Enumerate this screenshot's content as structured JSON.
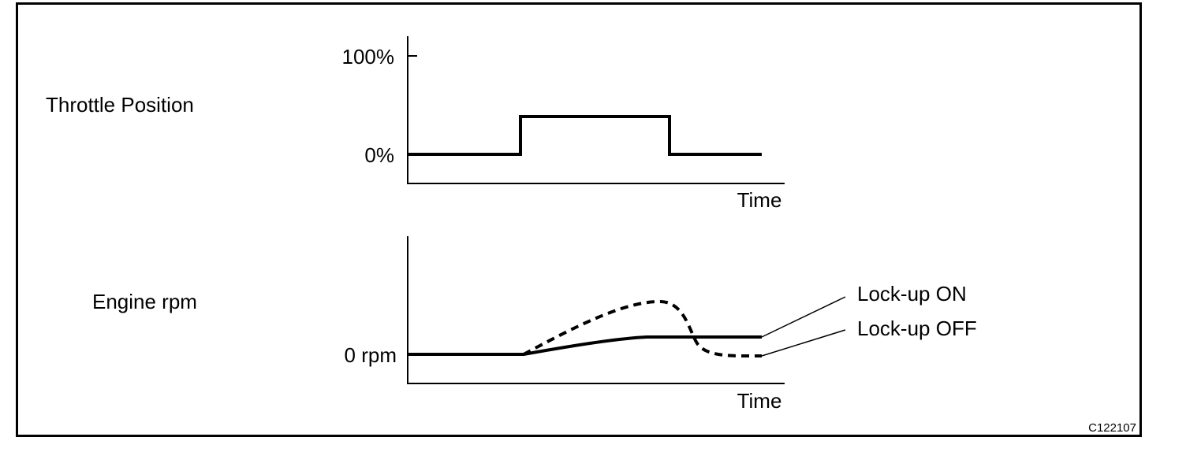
{
  "diagram": {
    "code": "C122107",
    "throttle": {
      "row_label": "Throttle Position",
      "tick_high": "100%",
      "tick_low": "0%",
      "x_label": "Time"
    },
    "engine": {
      "row_label": "Engine rpm",
      "tick_low": "0 rpm",
      "x_label": "Time",
      "legend": {
        "on": "Lock-up ON",
        "off": "Lock-up OFF"
      }
    }
  }
}
